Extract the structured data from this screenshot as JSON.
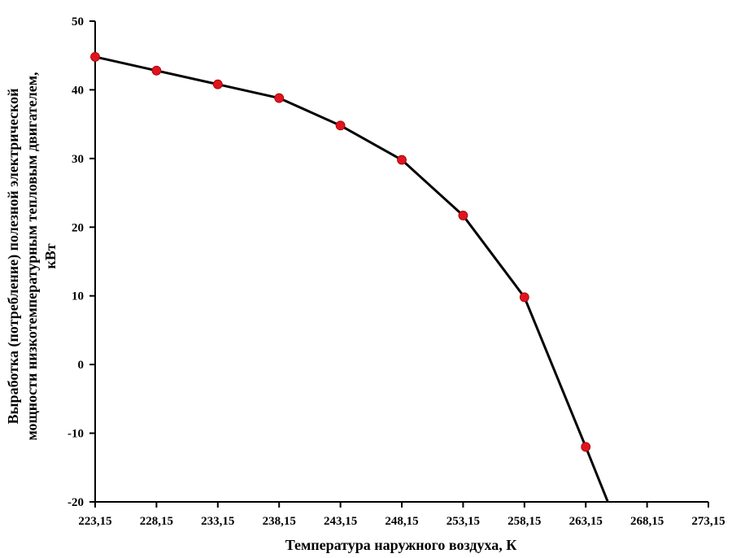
{
  "chart_data": {
    "type": "line",
    "xlabel": "Температура наружного воздуха, К",
    "ylabel_lines": [
      "Выработка (потребление) полезной электрической",
      "мощности низкотемпературным тепловым двигателем,",
      "кВт"
    ],
    "x_ticks": [
      "223,15",
      "228,15",
      "233,15",
      "238,15",
      "243,15",
      "248,15",
      "253,15",
      "258,15",
      "263,15",
      "268,15",
      "273,15"
    ],
    "x_tick_values": [
      223.15,
      228.15,
      233.15,
      238.15,
      243.15,
      248.15,
      253.15,
      258.15,
      263.15,
      268.15,
      273.15
    ],
    "y_ticks": [
      "50",
      "40",
      "30",
      "20",
      "10",
      "0",
      "-10",
      "-20"
    ],
    "y_tick_values": [
      50,
      40,
      30,
      20,
      10,
      0,
      -10,
      -20
    ],
    "xlim": [
      223.15,
      273.15
    ],
    "ylim": [
      -20,
      50
    ],
    "series": [
      {
        "x": [
          223.15,
          228.15,
          233.15,
          238.15,
          243.15,
          248.15,
          253.15,
          258.15,
          263.15
        ],
        "y": [
          44.8,
          42.8,
          40.8,
          38.8,
          34.8,
          29.8,
          21.7,
          9.8,
          -12.0
        ],
        "line_color": "#000000",
        "marker_color": "#e0141e"
      }
    ],
    "line_extension": {
      "x": 264.95,
      "y": -20
    },
    "grid": false
  }
}
